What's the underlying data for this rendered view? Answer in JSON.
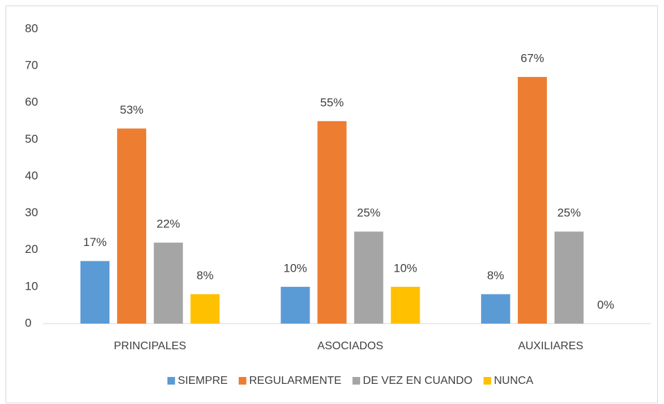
{
  "chart_data": {
    "type": "bar",
    "categories": [
      "PRINCIPALES",
      "ASOCIADOS",
      "AUXILIARES"
    ],
    "series": [
      {
        "name": "SIEMPRE",
        "color": "#5b9bd5",
        "values": [
          17,
          10,
          8
        ],
        "value_labels": [
          "17%",
          "10%",
          "8%"
        ]
      },
      {
        "name": "REGULARMENTE",
        "color": "#ed7d31",
        "values": [
          53,
          55,
          67
        ],
        "value_labels": [
          "53%",
          "55%",
          "67%"
        ]
      },
      {
        "name": "DE VEZ EN CUANDO",
        "color": "#a5a5a5",
        "values": [
          22,
          25,
          25
        ],
        "value_labels": [
          "22%",
          "25%",
          "25%"
        ]
      },
      {
        "name": "NUNCA",
        "color": "#ffc000",
        "values": [
          8,
          10,
          0
        ],
        "value_labels": [
          "8%",
          "10%",
          "0%"
        ]
      }
    ],
    "ylim": [
      0,
      80
    ],
    "yticks": [
      0,
      10,
      20,
      30,
      40,
      50,
      60,
      70,
      80
    ],
    "grid": false,
    "legend": "bottom"
  }
}
